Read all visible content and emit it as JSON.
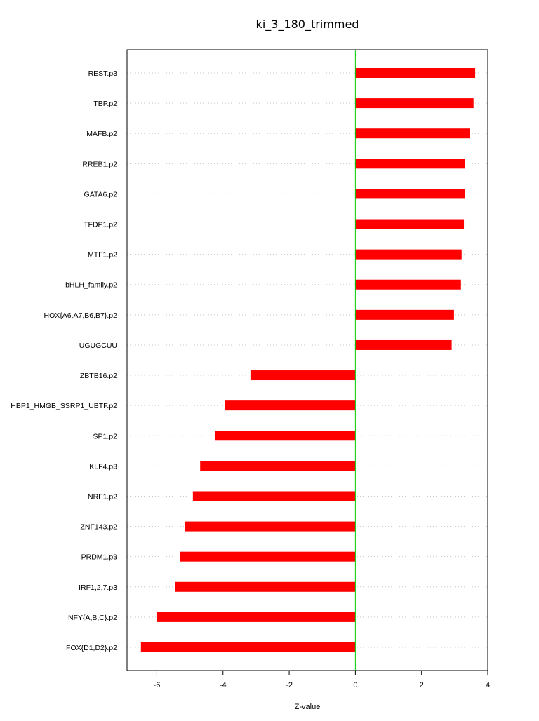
{
  "chart_data": {
    "type": "bar",
    "orientation": "horizontal",
    "title": "ki_3_180_trimmed",
    "xlabel": "Z-value",
    "ylabel": "",
    "xlim": [
      -6.9,
      4.0
    ],
    "xticks": [
      -6,
      -4,
      -2,
      0,
      2,
      4
    ],
    "categories": [
      "REST.p3",
      "TBP.p2",
      "MAFB.p2",
      "RREB1.p2",
      "GATA6.p2",
      "TFDP1.p2",
      "MTF1.p2",
      "bHLH_family.p2",
      "HOX{A6,A7,B6,B7}.p2",
      "UGUGCUU",
      "ZBTB16.p2",
      "HBP1_HMGB_SSRP1_UBTF.p2",
      "SP1.p2",
      "KLF4.p3",
      "NRF1.p2",
      "ZNF143.p2",
      "PRDM1.p3",
      "IRF1,2,7.p3",
      "NFY{A,B,C}.p2",
      "FOX{D1,D2}.p2"
    ],
    "values": [
      3.62,
      3.57,
      3.45,
      3.32,
      3.31,
      3.28,
      3.21,
      3.19,
      2.98,
      2.91,
      -3.17,
      -3.94,
      -4.25,
      -4.69,
      -4.91,
      -5.16,
      -5.31,
      -5.44,
      -6.01,
      -6.48
    ],
    "bar_color": "#ff0000",
    "zero_line_color": "#00cc00",
    "grid": "horizontal dotted"
  }
}
